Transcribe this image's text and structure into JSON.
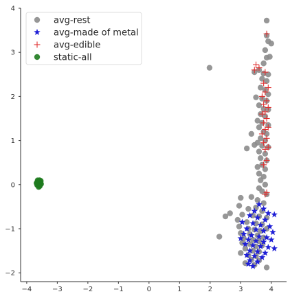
{
  "chart_data": {
    "type": "scatter",
    "title": "",
    "xlabel": "",
    "ylabel": "",
    "xlim": [
      -4.2,
      4.5
    ],
    "ylim": [
      -2.2,
      4.0
    ],
    "xticks": [
      -4,
      -3,
      -2,
      -1,
      0,
      1,
      2,
      3,
      4
    ],
    "yticks": [
      -2,
      -1,
      0,
      1,
      2,
      3,
      4
    ],
    "xtick_labels": [
      "−4",
      "−3",
      "−2",
      "−1",
      "0",
      "1",
      "2",
      "3",
      "4"
    ],
    "ytick_labels": [
      "−2",
      "−1",
      "0",
      "1",
      "2",
      "3",
      "4"
    ],
    "grid": false,
    "legend_position": "top-left",
    "series": [
      {
        "name": "avg-rest",
        "marker": "circle",
        "color": "#8c8c8c",
        "points": [
          [
            3.85,
            3.72
          ],
          [
            3.85,
            3.38
          ],
          [
            3.9,
            3.25
          ],
          [
            4.0,
            3.2
          ],
          [
            3.8,
            3.05
          ],
          [
            3.95,
            2.9
          ],
          [
            3.85,
            2.88
          ],
          [
            3.75,
            2.75
          ],
          [
            1.98,
            2.65
          ],
          [
            3.45,
            2.55
          ],
          [
            3.6,
            2.6
          ],
          [
            3.75,
            2.52
          ],
          [
            3.9,
            2.5
          ],
          [
            3.7,
            2.4
          ],
          [
            3.85,
            2.35
          ],
          [
            3.65,
            2.2
          ],
          [
            3.8,
            2.15
          ],
          [
            3.9,
            2.05
          ],
          [
            3.5,
            1.98
          ],
          [
            3.7,
            1.95
          ],
          [
            3.85,
            1.9
          ],
          [
            3.6,
            1.8
          ],
          [
            3.75,
            1.72
          ],
          [
            3.9,
            1.7
          ],
          [
            3.65,
            1.6
          ],
          [
            3.8,
            1.55
          ],
          [
            3.55,
            1.45
          ],
          [
            3.7,
            1.4
          ],
          [
            3.9,
            1.35
          ],
          [
            3.6,
            1.3
          ],
          [
            3.75,
            1.2
          ],
          [
            3.85,
            1.15
          ],
          [
            3.35,
            1.15
          ],
          [
            3.65,
            1.05
          ],
          [
            3.8,
            1.0
          ],
          [
            3.55,
            0.95
          ],
          [
            3.45,
            0.9
          ],
          [
            3.7,
            0.88
          ],
          [
            3.9,
            0.85
          ],
          [
            3.2,
            0.82
          ],
          [
            3.6,
            0.75
          ],
          [
            3.8,
            0.7
          ],
          [
            3.65,
            0.6
          ],
          [
            3.85,
            0.55
          ],
          [
            3.7,
            0.45
          ],
          [
            3.55,
            0.4
          ],
          [
            3.8,
            0.35
          ],
          [
            3.6,
            0.25
          ],
          [
            3.75,
            0.18
          ],
          [
            3.65,
            0.1
          ],
          [
            3.8,
            0.0
          ],
          [
            3.6,
            -0.08
          ],
          [
            3.7,
            -0.15
          ],
          [
            3.85,
            -0.22
          ],
          [
            3.0,
            -0.3
          ],
          [
            3.35,
            -0.28
          ],
          [
            3.55,
            -0.35
          ],
          [
            3.75,
            -0.42
          ],
          [
            2.95,
            -0.48
          ],
          [
            3.25,
            -0.55
          ],
          [
            3.5,
            -0.52
          ],
          [
            3.7,
            -0.6
          ],
          [
            2.65,
            -0.65
          ],
          [
            2.5,
            -0.72
          ],
          [
            3.05,
            -0.68
          ],
          [
            3.4,
            -0.7
          ],
          [
            3.6,
            -0.72
          ],
          [
            3.85,
            -0.75
          ],
          [
            2.9,
            -0.8
          ],
          [
            3.2,
            -0.85
          ],
          [
            3.5,
            -0.88
          ],
          [
            3.7,
            -0.9
          ],
          [
            2.95,
            -0.95
          ],
          [
            3.25,
            -1.0
          ],
          [
            3.45,
            -1.02
          ],
          [
            3.65,
            -1.05
          ],
          [
            3.85,
            -1.0
          ],
          [
            3.0,
            -1.1
          ],
          [
            3.3,
            -1.12
          ],
          [
            3.55,
            -1.15
          ],
          [
            2.3,
            -1.18
          ],
          [
            3.75,
            -1.2
          ],
          [
            3.1,
            -1.22
          ],
          [
            3.4,
            -1.25
          ],
          [
            3.6,
            -1.28
          ],
          [
            3.05,
            -1.32
          ],
          [
            3.3,
            -1.35
          ],
          [
            3.5,
            -1.4
          ],
          [
            3.7,
            -1.38
          ],
          [
            3.15,
            -1.45
          ],
          [
            3.4,
            -1.5
          ],
          [
            3.6,
            -1.52
          ],
          [
            3.0,
            -1.55
          ],
          [
            3.25,
            -1.6
          ],
          [
            3.5,
            -1.62
          ],
          [
            3.35,
            -1.7
          ],
          [
            3.6,
            -1.72
          ],
          [
            3.15,
            -1.78
          ],
          [
            3.45,
            -1.82
          ],
          [
            3.85,
            -1.88
          ]
        ]
      },
      {
        "name": "avg-made of metal",
        "marker": "star",
        "color": "#1f1fd6",
        "points": [
          [
            3.6,
            -0.45
          ],
          [
            3.75,
            -0.55
          ],
          [
            3.45,
            -0.6
          ],
          [
            3.9,
            -0.65
          ],
          [
            4.1,
            -0.68
          ],
          [
            3.3,
            -0.7
          ],
          [
            3.55,
            -0.75
          ],
          [
            3.8,
            -0.8
          ],
          [
            3.05,
            -0.85
          ],
          [
            3.4,
            -0.88
          ],
          [
            3.65,
            -0.92
          ],
          [
            3.95,
            -0.95
          ],
          [
            3.2,
            -1.0
          ],
          [
            3.5,
            -1.02
          ],
          [
            3.75,
            -1.05
          ],
          [
            4.05,
            -1.08
          ],
          [
            3.1,
            -1.12
          ],
          [
            3.35,
            -1.15
          ],
          [
            3.6,
            -1.18
          ],
          [
            3.85,
            -1.2
          ],
          [
            3.0,
            -1.22
          ],
          [
            3.25,
            -1.25
          ],
          [
            3.5,
            -1.28
          ],
          [
            3.75,
            -1.3
          ],
          [
            4.0,
            -1.25
          ],
          [
            3.15,
            -1.35
          ],
          [
            3.4,
            -1.38
          ],
          [
            3.65,
            -1.4
          ],
          [
            3.9,
            -1.42
          ],
          [
            4.1,
            -1.45
          ],
          [
            3.3,
            -1.5
          ],
          [
            3.55,
            -1.52
          ],
          [
            3.8,
            -1.55
          ],
          [
            3.2,
            -1.6
          ],
          [
            3.45,
            -1.62
          ],
          [
            3.7,
            -1.65
          ],
          [
            3.3,
            -1.72
          ],
          [
            3.55,
            -1.75
          ],
          [
            3.4,
            -1.85
          ],
          [
            3.25,
            -1.8
          ]
        ]
      },
      {
        "name": "avg-edible",
        "marker": "plus",
        "color": "#e03030",
        "points": [
          [
            3.85,
            3.42
          ],
          [
            3.5,
            2.72
          ],
          [
            3.6,
            2.65
          ],
          [
            3.45,
            2.6
          ],
          [
            3.8,
            2.55
          ],
          [
            3.75,
            2.3
          ],
          [
            3.9,
            2.2
          ],
          [
            3.8,
            2.1
          ],
          [
            3.7,
            2.0
          ],
          [
            3.85,
            1.9
          ],
          [
            3.75,
            1.82
          ],
          [
            3.9,
            1.75
          ],
          [
            3.8,
            1.65
          ],
          [
            3.7,
            1.6
          ],
          [
            3.85,
            1.5
          ],
          [
            3.75,
            1.4
          ],
          [
            3.9,
            1.3
          ],
          [
            3.8,
            1.25
          ],
          [
            3.7,
            1.15
          ],
          [
            3.85,
            1.05
          ],
          [
            3.75,
            0.95
          ],
          [
            3.9,
            0.85
          ],
          [
            3.8,
            0.8
          ],
          [
            3.85,
            0.55
          ],
          [
            3.75,
            0.45
          ],
          [
            3.85,
            -0.18
          ],
          [
            3.8,
            -0.22
          ]
        ]
      },
      {
        "name": "static-all",
        "marker": "circle",
        "color": "#1e7b1e",
        "cluster": {
          "center": [
            -3.6,
            0.03
          ],
          "spread": [
            0.08,
            0.09
          ],
          "count": 18
        }
      }
    ]
  }
}
